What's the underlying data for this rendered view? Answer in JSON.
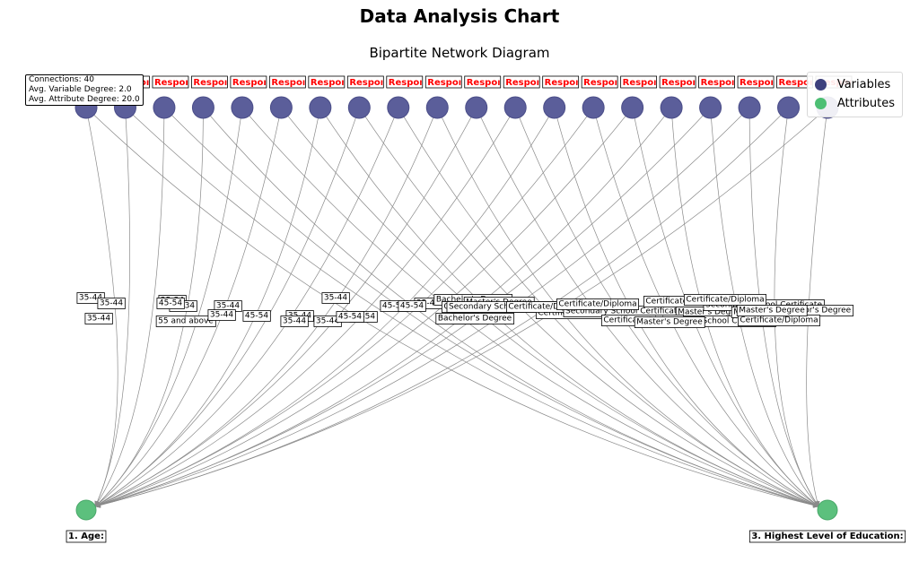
{
  "title": "Data Analysis Chart",
  "subtitle": "Bipartite Network Diagram",
  "legend": {
    "variables_label": "Variables",
    "attributes_label": "Attributes"
  },
  "stats": {
    "connections": "Connections: 40",
    "avg_variable_degree": "Avg. Variable Degree: 2.0",
    "avg_attribute_degree": "Avg. Attribute Degree: 20.0"
  },
  "colors": {
    "variable_node": "#5b5e9a",
    "attribute_node": "#5cc07d",
    "edge": "#8a8a8a",
    "top_label": "#ff0000"
  },
  "variable_nodes": {
    "count": 20,
    "label": "Respondent"
  },
  "attribute_nodes": [
    {
      "id": "age",
      "label": "1. Age:"
    },
    {
      "id": "edu",
      "label": "3. Highest Level of Education:"
    }
  ],
  "edge_labels": [
    {
      "attr": "age",
      "text": "35-44"
    },
    {
      "attr": "age",
      "text": "35-44"
    },
    {
      "attr": "age",
      "text": "35-44"
    },
    {
      "attr": "age",
      "text": "45-54"
    },
    {
      "attr": "age",
      "text": "25-34"
    },
    {
      "attr": "age",
      "text": "25-34"
    },
    {
      "attr": "age",
      "text": "55 and above"
    },
    {
      "attr": "age",
      "text": "35-44"
    },
    {
      "attr": "age",
      "text": "35-44"
    },
    {
      "attr": "age",
      "text": "45-54"
    },
    {
      "attr": "age",
      "text": "35-44"
    },
    {
      "attr": "age",
      "text": "35-44"
    },
    {
      "attr": "age",
      "text": "35-44"
    },
    {
      "attr": "age",
      "text": "35-44"
    },
    {
      "attr": "age",
      "text": "45-54"
    },
    {
      "attr": "age",
      "text": "35-44"
    },
    {
      "attr": "age",
      "text": "45-54"
    },
    {
      "attr": "age",
      "text": "45-54"
    },
    {
      "attr": "age",
      "text": "35-44"
    },
    {
      "attr": "age",
      "text": "45-54"
    },
    {
      "attr": "edu",
      "text": "Bachelor's Degree"
    },
    {
      "attr": "edu",
      "text": "Certificate/Diploma"
    },
    {
      "attr": "edu",
      "text": "Master's Degree"
    },
    {
      "attr": "edu",
      "text": "Secondary School Certificate"
    },
    {
      "attr": "edu",
      "text": "Bachelor's Degree"
    },
    {
      "attr": "edu",
      "text": "Certificate/Diploma"
    },
    {
      "attr": "edu",
      "text": "Certificate/Diploma"
    },
    {
      "attr": "edu",
      "text": "Secondary School Certificate"
    },
    {
      "attr": "edu",
      "text": "Certificate/Diploma"
    },
    {
      "attr": "edu",
      "text": "Certificate/Diploma"
    },
    {
      "attr": "edu",
      "text": "Master's Degree"
    },
    {
      "attr": "edu",
      "text": "Secondary School Certificate"
    },
    {
      "attr": "edu",
      "text": "Certificate/Diploma"
    },
    {
      "attr": "edu",
      "text": "Master's Degree"
    },
    {
      "attr": "edu",
      "text": "Secondary School Certificate"
    },
    {
      "attr": "edu",
      "text": "Master's Degree"
    },
    {
      "attr": "edu",
      "text": "Certificate/Diploma"
    },
    {
      "attr": "edu",
      "text": "Bachelor's Degree"
    },
    {
      "attr": "edu",
      "text": "Certificate/Diploma"
    },
    {
      "attr": "edu",
      "text": "Master's Degree"
    }
  ]
}
